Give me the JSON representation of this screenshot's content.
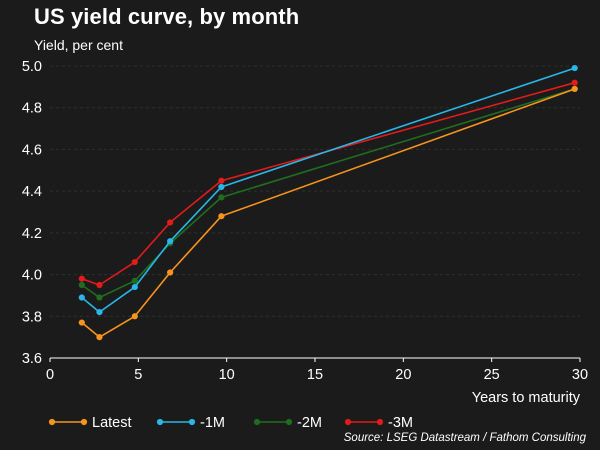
{
  "title": "US yield curve, by month",
  "subtitle": "Yield, per cent",
  "source": "Source: LSEG Datastream / Fathom Consulting",
  "chart_data": {
    "type": "line",
    "title": "US yield curve, by month",
    "ylabel": "Yield, per cent",
    "xlabel": "Years to maturity",
    "xlim": [
      0,
      30
    ],
    "ylim": [
      3.6,
      5.0
    ],
    "xticks": [
      0,
      5,
      10,
      15,
      20,
      25,
      30
    ],
    "yticks": [
      3.6,
      3.8,
      4.0,
      4.2,
      4.4,
      4.6,
      4.8,
      5.0
    ],
    "ytick_labels": [
      "3.6",
      "3.8",
      "4.0",
      "4.2",
      "4.4",
      "4.6",
      "4.8",
      "5.0"
    ],
    "grid": true,
    "legend_position": "bottom",
    "x": [
      1.8,
      2.8,
      4.8,
      6.8,
      9.7,
      29.7
    ],
    "series": [
      {
        "name": "Latest",
        "color": "#f7941d",
        "values": [
          3.77,
          3.7,
          3.8,
          4.01,
          4.28,
          4.89
        ]
      },
      {
        "name": "-1M",
        "color": "#29b6e8",
        "values": [
          3.89,
          3.82,
          3.94,
          4.16,
          4.42,
          4.99
        ]
      },
      {
        "name": "-2M",
        "color": "#1f6e1f",
        "values": [
          3.95,
          3.89,
          3.97,
          4.15,
          4.37,
          4.89
        ]
      },
      {
        "name": "-3M",
        "color": "#e21b1b",
        "values": [
          3.98,
          3.95,
          4.06,
          4.25,
          4.45,
          4.92
        ]
      }
    ]
  }
}
